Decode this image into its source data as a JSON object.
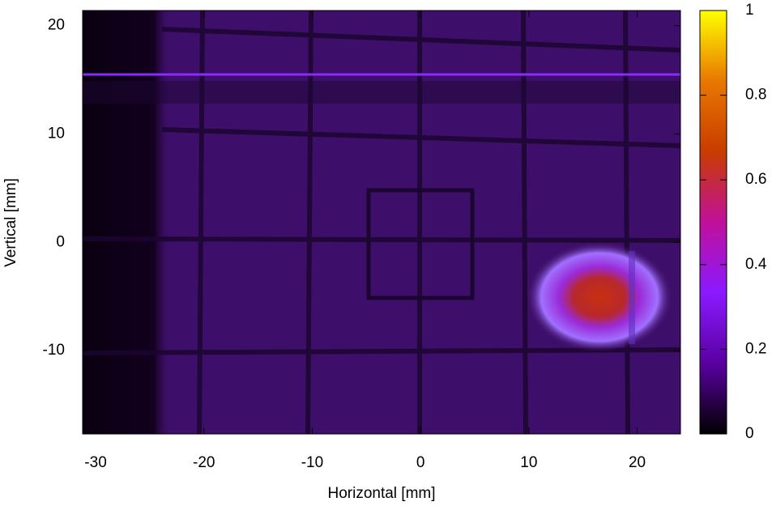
{
  "chart_data": {
    "type": "heatmap",
    "xlabel": "Horizontal [mm]",
    "ylabel": "Vertical [mm]",
    "xlim": [
      -31.2,
      24
    ],
    "ylim": [
      -17.7,
      21.4
    ],
    "xticks": [
      -30,
      -20,
      -10,
      0,
      10,
      20
    ],
    "yticks": [
      -10,
      0,
      10,
      20
    ],
    "colorbar": {
      "lim": [
        0,
        1
      ],
      "ticks": [
        0,
        0.2,
        0.4,
        0.6,
        0.8,
        1
      ],
      "palette": [
        "#000000",
        "#5a00a0",
        "#8a1aff",
        "#c0109a",
        "#c83c00",
        "#e87800",
        "#ffff00"
      ]
    }
  }
}
